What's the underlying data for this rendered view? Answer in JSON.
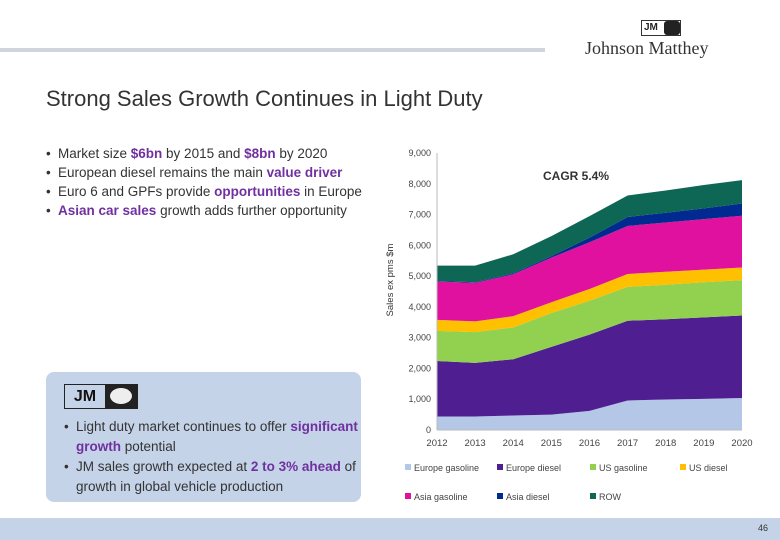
{
  "header": {
    "logo_text": "Johnson Matthey",
    "logo_mark": "JM"
  },
  "title": "Strong Sales Growth Continues in Light Duty",
  "bullets": [
    [
      {
        "t": "Market size "
      },
      {
        "t": "$6bn",
        "h": true
      },
      {
        "t": " by 2015 and "
      },
      {
        "t": "$8bn",
        "h": true
      },
      {
        "t": " by 2020"
      }
    ],
    [
      {
        "t": "European diesel remains the main "
      },
      {
        "t": "value driver",
        "h": true
      }
    ],
    [
      {
        "t": "Euro 6 and GPFs provide "
      },
      {
        "t": "opportunities",
        "h": true
      },
      {
        "t": " in Europe"
      }
    ],
    [
      {
        "t": "Asian car sales",
        "h": true
      },
      {
        "t": " growth adds further opportunity"
      }
    ]
  ],
  "box": {
    "logo_mark": "JM",
    "bullets": [
      [
        {
          "t": "Light duty market continues to offer "
        },
        {
          "t": "significant growth",
          "h": true
        },
        {
          "t": " potential"
        }
      ],
      [
        {
          "t": "JM sales growth expected at "
        },
        {
          "t": "2 to 3% ahead",
          "h": true
        },
        {
          "t": " of growth in global vehicle production"
        }
      ]
    ]
  },
  "page_number": "46",
  "colors": {
    "highlight": "#7030a0",
    "box": "#c5d3e8"
  },
  "chart_data": {
    "type": "area",
    "stacked": true,
    "annotation": "CAGR 5.4%",
    "ylabel": "Sales ex pms $m",
    "ylim": [
      0,
      9000
    ],
    "yticks": [
      "0",
      "1,000",
      "2,000",
      "3,000",
      "4,000",
      "5,000",
      "6,000",
      "7,000",
      "8,000",
      "9,000"
    ],
    "categories": [
      "2012",
      "2013",
      "2014",
      "2015",
      "2016",
      "2017",
      "2018",
      "2019",
      "2020"
    ],
    "legend_position": "bottom",
    "series": [
      {
        "name": "Europe gasoline",
        "color": "#b4c7e7",
        "values": [
          440,
          440,
          470,
          500,
          620,
          960,
          990,
          1010,
          1040
        ]
      },
      {
        "name": "Europe diesel",
        "color": "#4f1f91",
        "values": [
          1800,
          1740,
          1830,
          2200,
          2480,
          2590,
          2610,
          2650,
          2680
        ]
      },
      {
        "name": "US gasoline",
        "color": "#92d050",
        "values": [
          980,
          1000,
          1030,
          1100,
          1100,
          1100,
          1120,
          1140,
          1150
        ]
      },
      {
        "name": "US diesel",
        "color": "#ffc000",
        "values": [
          360,
          350,
          370,
          350,
          380,
          420,
          420,
          410,
          410
        ]
      },
      {
        "name": "Asia gasoline",
        "color": "#e0119f",
        "values": [
          1240,
          1250,
          1360,
          1450,
          1520,
          1560,
          1600,
          1640,
          1680
        ]
      },
      {
        "name": "Asia diesel",
        "color": "#002a8f",
        "values": [
          20,
          20,
          30,
          50,
          150,
          290,
          320,
          350,
          400
        ]
      },
      {
        "name": "ROW",
        "color": "#0e6655",
        "values": [
          500,
          540,
          620,
          650,
          700,
          700,
          720,
          760,
          760
        ]
      }
    ]
  }
}
